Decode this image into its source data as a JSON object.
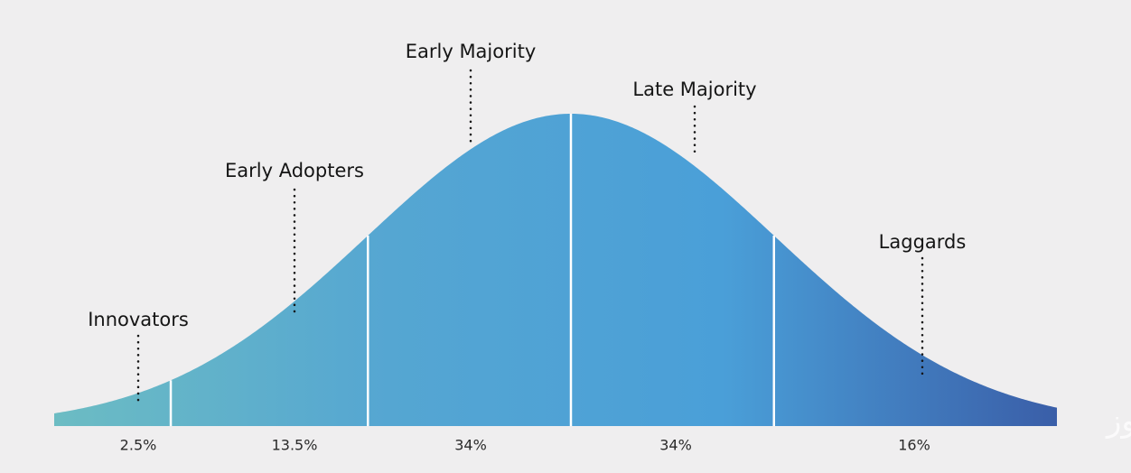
{
  "chart_data": {
    "type": "bell",
    "categories": [
      "Innovators",
      "Early Adopters",
      "Early Majority",
      "Late Majority",
      "Laggards"
    ],
    "values": [
      2.5,
      13.5,
      34,
      34,
      16
    ],
    "value_labels": [
      "2.5%",
      "13.5%",
      "34%",
      "34%",
      "16%"
    ],
    "color_stops": [
      "#6cbcc3",
      "#55a6d2",
      "#4a9fd8",
      "#3a5ea8"
    ],
    "watermark": "ایران ایکس نیوز"
  }
}
